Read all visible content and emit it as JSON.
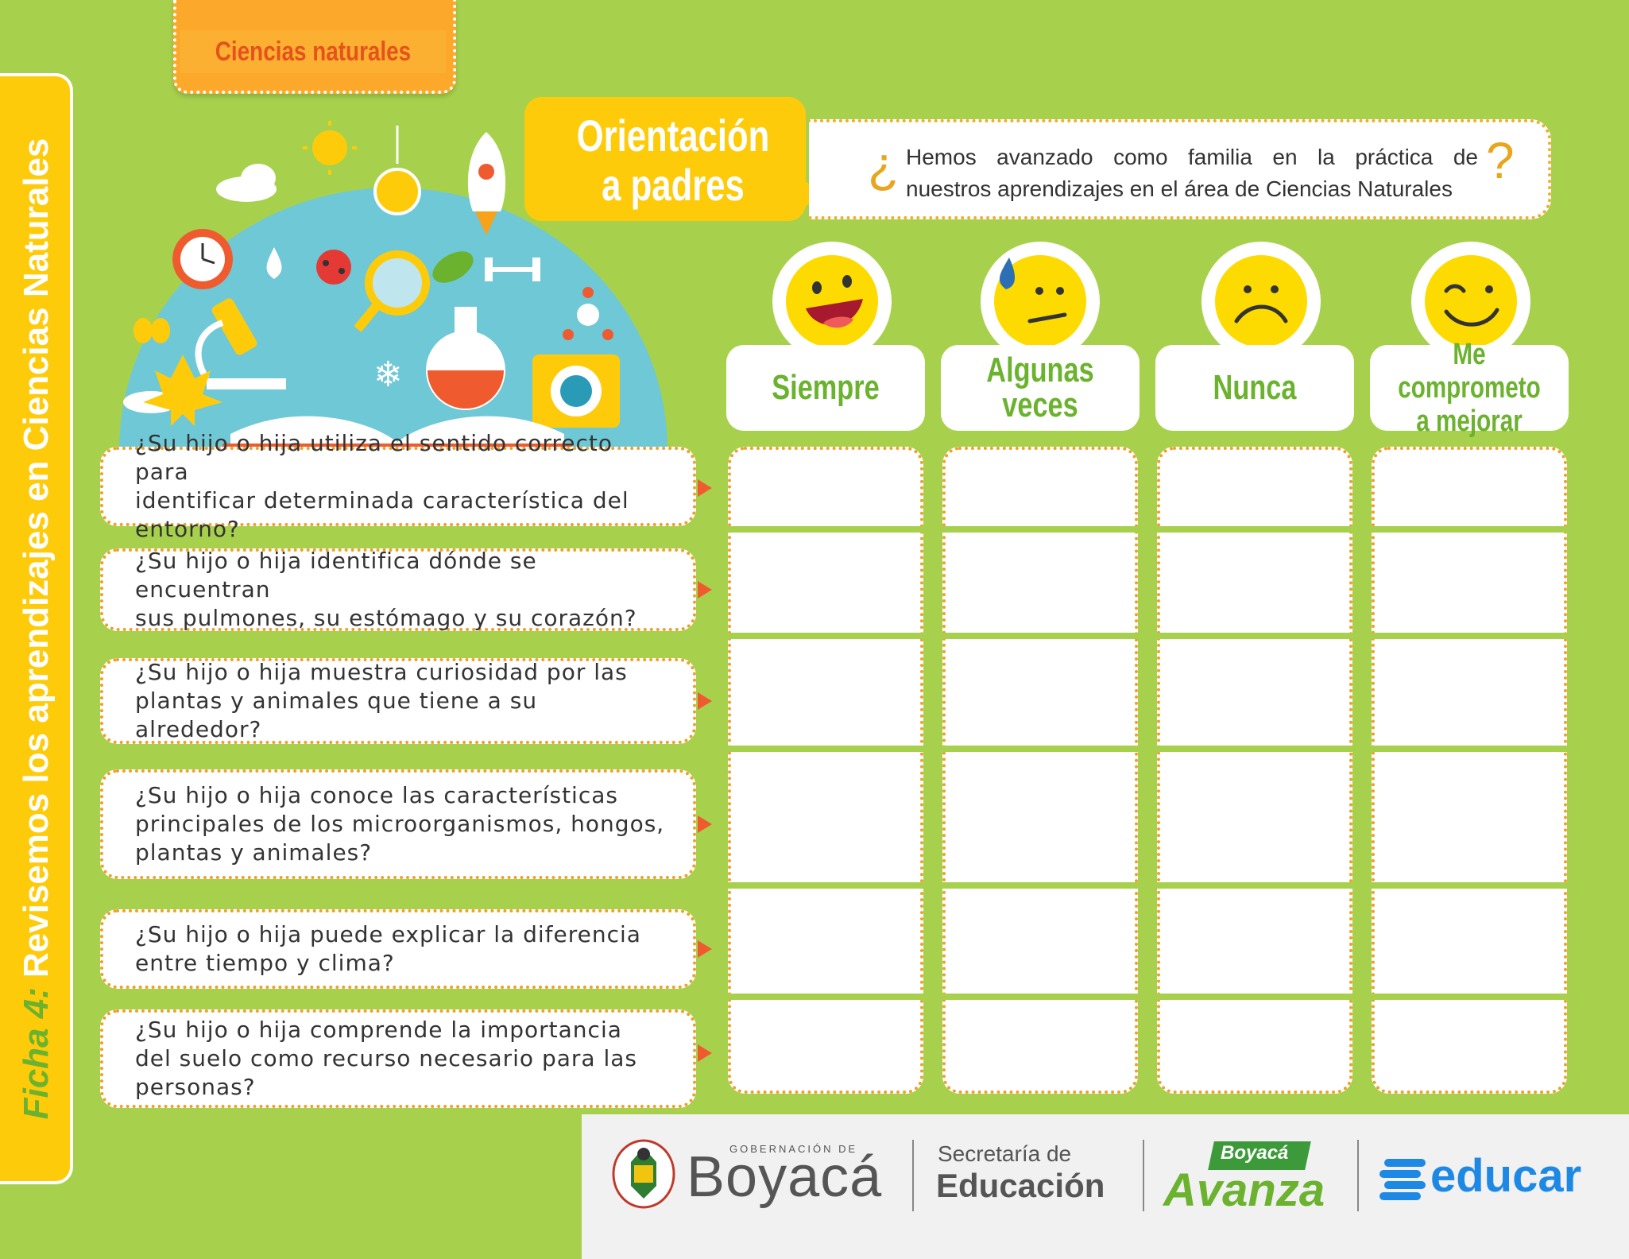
{
  "subject_tab": "Ciencias naturales",
  "side_title": {
    "ficha": "Ficha 4:",
    "text": "Revisemos los aprendizajes en Ciencias Naturales"
  },
  "orientation": {
    "line1": "Orientación",
    "line2": "a padres"
  },
  "header_question": {
    "line1": "Hemos avanzado como familia en la práctica de",
    "line2": "nuestros aprendizajes en el área de Ciencias Naturales"
  },
  "columns": [
    {
      "label": "Siempre",
      "face": "laughing-face"
    },
    {
      "label": "Algunas veces",
      "face": "sweating-face"
    },
    {
      "label": "Nunca",
      "face": "sad-face"
    },
    {
      "label_line1": "Me comprometo",
      "label_line2": "a mejorar",
      "face": "winking-face"
    }
  ],
  "questions": [
    {
      "line1": "¿Su hijo o hija utiliza el sentido correcto para",
      "line2": "identificar determinada característica del entorno?",
      "line3": ""
    },
    {
      "line1": "¿Su hijo o hija identifica dónde se encuentran",
      "line2": "sus pulmones, su estómago y su corazón?",
      "line3": ""
    },
    {
      "line1": "¿Su hijo o hija muestra curiosidad por las",
      "line2": "plantas y animales que tiene a su alrededor?",
      "line3": ""
    },
    {
      "line1": "¿Su hijo o hija conoce las características",
      "line2": "principales de los microorganismos, hongos,",
      "line3": "plantas y animales?"
    },
    {
      "line1": "¿Su hijo o hija puede explicar la diferencia",
      "line2": "entre tiempo y clima?",
      "line3": ""
    },
    {
      "line1": "¿Su hijo o hija comprende la importancia",
      "line2": "del suelo como recurso necesario para las",
      "line3": "personas?"
    }
  ],
  "footer": {
    "gob_small": "GOBERNACIÓN DE",
    "boyaca": "Boyacá",
    "secretaria": "Secretaría de",
    "educacion": "Educación",
    "avanza_small": "Boyacá",
    "avanza": "Avanza",
    "educar": "educar"
  },
  "colors": {
    "background": "#a7d14d",
    "accent_yellow": "#fecb0a",
    "accent_orange": "#fca92b",
    "green_text": "#6bb22f"
  }
}
